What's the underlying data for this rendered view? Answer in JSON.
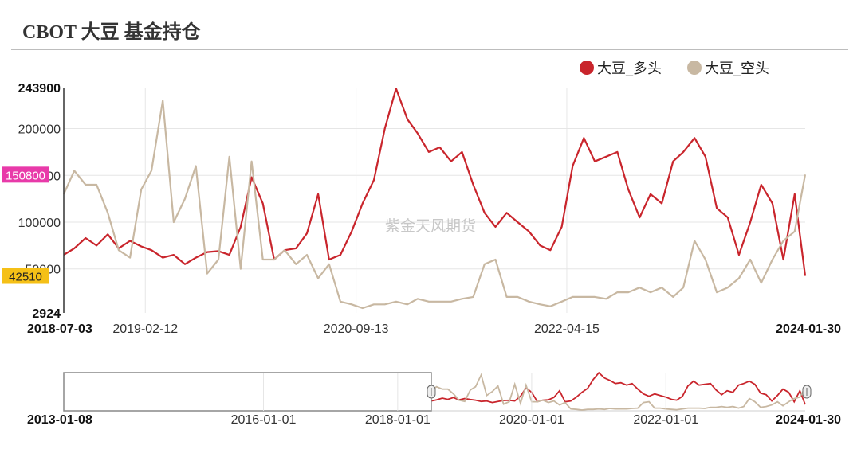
{
  "title": "CBOT 大豆 基金持仓",
  "watermark": "紫金天风期货",
  "colors": {
    "long": "#c9252c",
    "short": "#c8b8a2",
    "badge_max": "#e83aa9",
    "badge_last": "#f5c017"
  },
  "legend": [
    {
      "name": "大豆_多头",
      "color": "#c9252c"
    },
    {
      "name": "大豆_空头",
      "color": "#c8b8a2"
    }
  ],
  "main_axis": {
    "x_start_label": "2018-07-03",
    "x_end_label": "2024-01-30",
    "x_ticks": [
      "2019-02-12",
      "2020-09-13",
      "2022-04-15"
    ],
    "y_ticks": [
      "243900",
      "200000",
      "150000",
      "100000",
      "50000",
      "2924"
    ],
    "badge_max": "150800",
    "badge_last": "42510"
  },
  "navigator_axis": {
    "x_start_label": "2013-01-08",
    "x_end_label": "2024-01-30",
    "x_ticks": [
      "2016-01-01",
      "2018-01-01",
      "2020-01-01",
      "2022-01-01"
    ]
  },
  "chart_data": {
    "type": "line",
    "title": "CBOT 大豆 基金持仓",
    "xlabel": "",
    "ylabel": "",
    "xlim": [
      "2018-07-03",
      "2024-01-30"
    ],
    "ylim": [
      2924,
      243900
    ],
    "grid": true,
    "legend_position": "top-right",
    "series": [
      {
        "name": "大豆_多头",
        "x": [
          "2018-07-03",
          "2018-08-01",
          "2018-09-01",
          "2018-10-01",
          "2018-11-01",
          "2018-12-01",
          "2019-01-01",
          "2019-02-01",
          "2019-03-01",
          "2019-04-01",
          "2019-05-01",
          "2019-06-01",
          "2019-07-01",
          "2019-08-01",
          "2019-09-01",
          "2019-10-01",
          "2019-11-01",
          "2019-12-01",
          "2020-01-01",
          "2020-02-01",
          "2020-03-01",
          "2020-04-01",
          "2020-05-01",
          "2020-06-01",
          "2020-07-01",
          "2020-08-01",
          "2020-09-01",
          "2020-10-01",
          "2020-11-01",
          "2020-12-01",
          "2021-01-01",
          "2021-02-01",
          "2021-03-01",
          "2021-04-01",
          "2021-05-01",
          "2021-06-01",
          "2021-07-01",
          "2021-08-01",
          "2021-09-01",
          "2021-10-01",
          "2021-11-01",
          "2021-12-01",
          "2022-01-01",
          "2022-02-01",
          "2022-03-01",
          "2022-04-01",
          "2022-05-01",
          "2022-06-01",
          "2022-07-01",
          "2022-08-01",
          "2022-09-01",
          "2022-10-01",
          "2022-11-01",
          "2022-12-01",
          "2023-01-01",
          "2023-02-01",
          "2023-03-01",
          "2023-04-01",
          "2023-05-01",
          "2023-06-01",
          "2023-07-01",
          "2023-08-01",
          "2023-09-01",
          "2023-10-01",
          "2023-11-01",
          "2023-12-01",
          "2024-01-01",
          "2024-01-30"
        ],
        "values": [
          65000,
          72000,
          83000,
          75000,
          87000,
          72000,
          80000,
          74000,
          70000,
          62000,
          65000,
          55000,
          62000,
          68000,
          69000,
          65000,
          95000,
          148000,
          120000,
          60000,
          70000,
          72000,
          88000,
          130000,
          60000,
          65000,
          90000,
          120000,
          145000,
          200000,
          243000,
          210000,
          195000,
          175000,
          180000,
          165000,
          175000,
          140000,
          110000,
          95000,
          110000,
          100000,
          90000,
          75000,
          70000,
          95000,
          160000,
          190000,
          165000,
          170000,
          175000,
          135000,
          105000,
          130000,
          120000,
          165000,
          175000,
          190000,
          170000,
          115000,
          105000,
          65000,
          100000,
          140000,
          120000,
          60000,
          130000,
          42510
        ]
      },
      {
        "name": "大豆_空头",
        "x": [
          "2018-07-03",
          "2018-08-01",
          "2018-09-01",
          "2018-10-01",
          "2018-11-01",
          "2018-12-01",
          "2019-01-01",
          "2019-02-01",
          "2019-03-01",
          "2019-04-01",
          "2019-05-01",
          "2019-06-01",
          "2019-07-01",
          "2019-08-01",
          "2019-09-01",
          "2019-10-01",
          "2019-11-01",
          "2019-12-01",
          "2020-01-01",
          "2020-02-01",
          "2020-03-01",
          "2020-04-01",
          "2020-05-01",
          "2020-06-01",
          "2020-07-01",
          "2020-08-01",
          "2020-09-01",
          "2020-10-01",
          "2020-11-01",
          "2020-12-01",
          "2021-01-01",
          "2021-02-01",
          "2021-03-01",
          "2021-04-01",
          "2021-05-01",
          "2021-06-01",
          "2021-07-01",
          "2021-08-01",
          "2021-09-01",
          "2021-10-01",
          "2021-11-01",
          "2021-12-01",
          "2022-01-01",
          "2022-02-01",
          "2022-03-01",
          "2022-04-01",
          "2022-05-01",
          "2022-06-01",
          "2022-07-01",
          "2022-08-01",
          "2022-09-01",
          "2022-10-01",
          "2022-11-01",
          "2022-12-01",
          "2023-01-01",
          "2023-02-01",
          "2023-03-01",
          "2023-04-01",
          "2023-05-01",
          "2023-06-01",
          "2023-07-01",
          "2023-08-01",
          "2023-09-01",
          "2023-10-01",
          "2023-11-01",
          "2023-12-01",
          "2024-01-01",
          "2024-01-30"
        ],
        "values": [
          130000,
          155000,
          140000,
          140000,
          110000,
          70000,
          62000,
          135000,
          155000,
          230000,
          100000,
          125000,
          160000,
          45000,
          60000,
          170000,
          50000,
          165000,
          60000,
          60000,
          70000,
          55000,
          65000,
          40000,
          55000,
          15000,
          12000,
          8000,
          12000,
          12000,
          15000,
          12000,
          18000,
          15000,
          15000,
          15000,
          18000,
          20000,
          55000,
          60000,
          20000,
          20000,
          15000,
          12000,
          10000,
          15000,
          20000,
          20000,
          20000,
          18000,
          25000,
          25000,
          30000,
          25000,
          30000,
          20000,
          30000,
          80000,
          60000,
          25000,
          30000,
          40000,
          60000,
          35000,
          60000,
          80000,
          90000,
          150800
        ]
      }
    ]
  }
}
